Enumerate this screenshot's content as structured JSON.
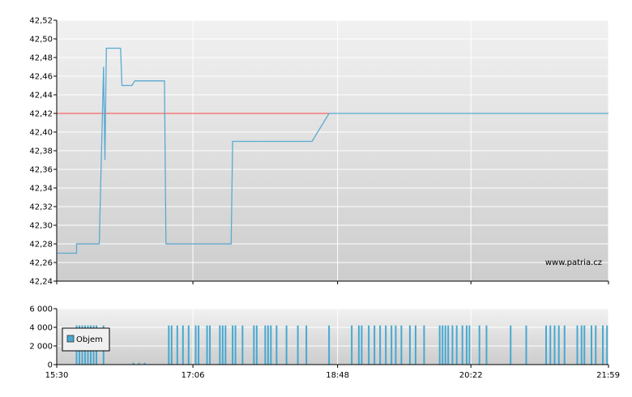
{
  "watermark": "www.patria.cz",
  "colors": {
    "price_line": "#5aaad2",
    "reference_line": "#ff4444",
    "volume_bar": "#48a8d0",
    "plot_top": "#f1f1f1",
    "plot_bottom": "#cdcdcd",
    "grid": "#ffffff"
  },
  "chart_data": [
    {
      "type": "line",
      "name": "price",
      "x_range": [
        "15:30",
        "21:59"
      ],
      "xticks": [
        "15:30",
        "17:06",
        "18:48",
        "20:22",
        "21:59"
      ],
      "ylim": [
        42.24,
        42.52
      ],
      "yticks": [
        "42,24",
        "42,26",
        "42,28",
        "42,30",
        "42,32",
        "42,34",
        "42,36",
        "42,38",
        "42,40",
        "42,42",
        "42,44",
        "42,46",
        "42,48",
        "42,50",
        "42,52"
      ],
      "reference_value": 42.42,
      "grid": true,
      "points": [
        [
          "15:30",
          42.27
        ],
        [
          "15:44",
          42.27
        ],
        [
          "15:44",
          42.28
        ],
        [
          "16:00",
          42.28
        ],
        [
          "16:03",
          42.47
        ],
        [
          "16:04",
          42.37
        ],
        [
          "16:05",
          42.49
        ],
        [
          "16:15",
          42.49
        ],
        [
          "16:16",
          42.45
        ],
        [
          "16:23",
          42.45
        ],
        [
          "16:25",
          42.455
        ],
        [
          "16:46",
          42.455
        ],
        [
          "16:47",
          42.28
        ],
        [
          "17:33",
          42.28
        ],
        [
          "17:34",
          42.39
        ],
        [
          "18:30",
          42.39
        ],
        [
          "18:42",
          42.42
        ],
        [
          "21:59",
          42.42
        ]
      ]
    },
    {
      "type": "bar",
      "name": "volume",
      "legend": "Objem",
      "legend_position": "top-left",
      "ylim": [
        0,
        6000
      ],
      "yticks": [
        "0",
        "2 000",
        "4 000",
        "6 000"
      ],
      "bars": [
        [
          "15:44",
          4200
        ],
        [
          "15:46",
          4200
        ],
        [
          "15:48",
          4200
        ],
        [
          "15:50",
          4200
        ],
        [
          "15:52",
          4200
        ],
        [
          "15:54",
          4200
        ],
        [
          "15:56",
          4200
        ],
        [
          "15:58",
          4200
        ],
        [
          "16:03",
          4200
        ],
        [
          "16:24",
          200
        ],
        [
          "16:28",
          200
        ],
        [
          "16:32",
          200
        ],
        [
          "16:49",
          4200
        ],
        [
          "16:51",
          4200
        ],
        [
          "16:55",
          4200
        ],
        [
          "16:59",
          4200
        ],
        [
          "17:03",
          4200
        ],
        [
          "17:08",
          4200
        ],
        [
          "17:10",
          4200
        ],
        [
          "17:16",
          4200
        ],
        [
          "17:18",
          4200
        ],
        [
          "17:25",
          4200
        ],
        [
          "17:27",
          4200
        ],
        [
          "17:29",
          4200
        ],
        [
          "17:34",
          4200
        ],
        [
          "17:36",
          4200
        ],
        [
          "17:41",
          4200
        ],
        [
          "17:49",
          4200
        ],
        [
          "17:51",
          4200
        ],
        [
          "17:57",
          4200
        ],
        [
          "17:59",
          4200
        ],
        [
          "18:01",
          4200
        ],
        [
          "18:05",
          4200
        ],
        [
          "18:12",
          4200
        ],
        [
          "18:20",
          4200
        ],
        [
          "18:26",
          4200
        ],
        [
          "18:42",
          4200
        ],
        [
          "18:58",
          4200
        ],
        [
          "19:03",
          4200
        ],
        [
          "19:05",
          4200
        ],
        [
          "19:10",
          4200
        ],
        [
          "19:14",
          4200
        ],
        [
          "19:18",
          4200
        ],
        [
          "19:22",
          4200
        ],
        [
          "19:26",
          4200
        ],
        [
          "19:29",
          4200
        ],
        [
          "19:33",
          4200
        ],
        [
          "19:39",
          4200
        ],
        [
          "19:43",
          4200
        ],
        [
          "19:49",
          4200
        ],
        [
          "20:00",
          4200
        ],
        [
          "20:02",
          4200
        ],
        [
          "20:04",
          4200
        ],
        [
          "20:06",
          4200
        ],
        [
          "20:09",
          4200
        ],
        [
          "20:12",
          4200
        ],
        [
          "20:16",
          4200
        ],
        [
          "20:19",
          4200
        ],
        [
          "20:21",
          4200
        ],
        [
          "20:28",
          4200
        ],
        [
          "20:33",
          4200
        ],
        [
          "20:50",
          4200
        ],
        [
          "21:01",
          4200
        ],
        [
          "21:15",
          4200
        ],
        [
          "21:18",
          4200
        ],
        [
          "21:21",
          4200
        ],
        [
          "21:24",
          4200
        ],
        [
          "21:28",
          4200
        ],
        [
          "21:37",
          4200
        ],
        [
          "21:40",
          4200
        ],
        [
          "21:42",
          4200
        ],
        [
          "21:47",
          4200
        ],
        [
          "21:50",
          4200
        ],
        [
          "21:55",
          4200
        ],
        [
          "21:58",
          4200
        ]
      ]
    }
  ]
}
